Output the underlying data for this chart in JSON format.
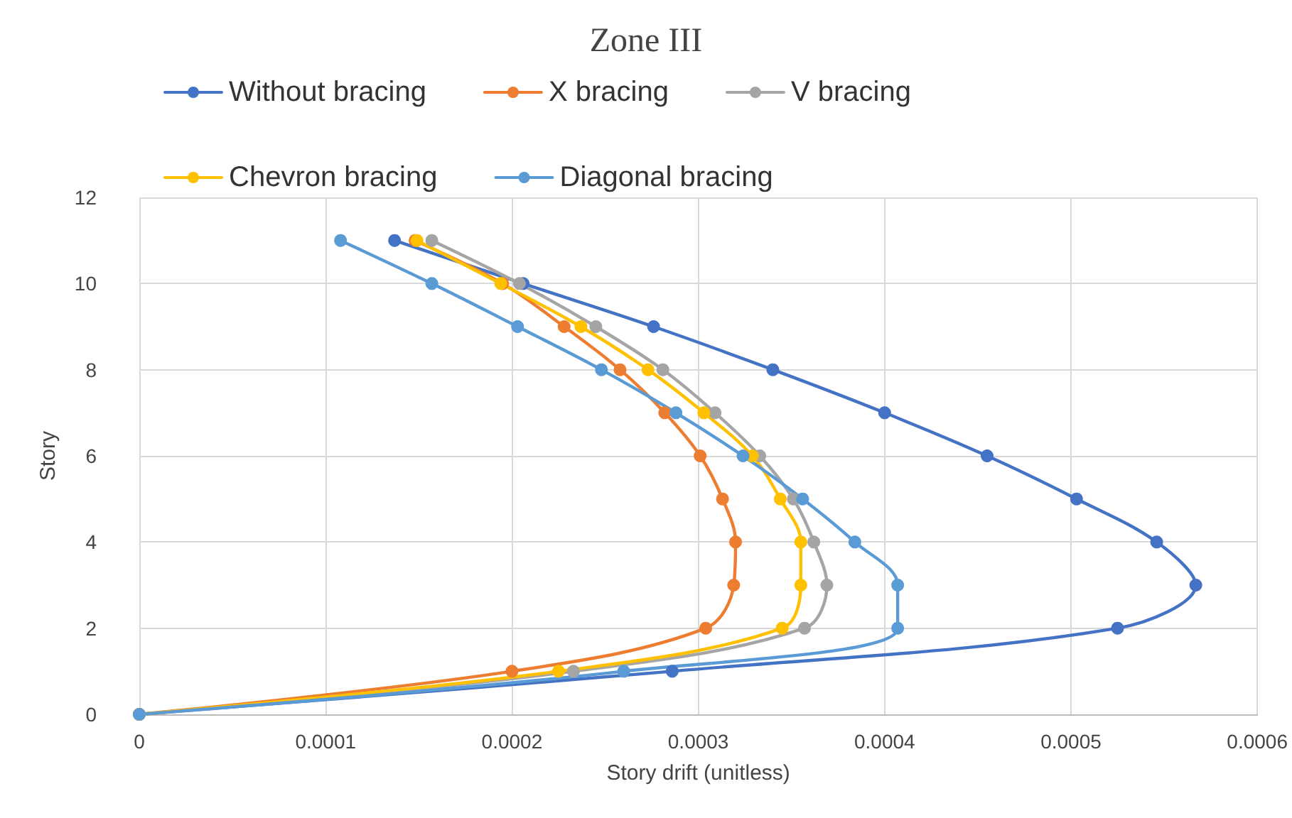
{
  "chart_data": {
    "type": "line",
    "title": "Zone III",
    "xlabel": "Story drift (unitless)",
    "ylabel": "Story",
    "xlim": [
      0,
      0.0006
    ],
    "xticks": [
      0,
      0.0001,
      0.0002,
      0.0003,
      0.0004,
      0.0005,
      0.0006
    ],
    "ylim": [
      0,
      12
    ],
    "yticks": [
      0,
      2,
      4,
      6,
      8,
      10,
      12
    ],
    "grid": true,
    "legend": "top",
    "marker": "circle",
    "line_style": "solid",
    "series": [
      {
        "name": "Without bracing",
        "color": "#4472c4",
        "x": [
          0,
          0.000286,
          0.000525,
          0.000567,
          0.000546,
          0.000503,
          0.000455,
          0.0004,
          0.00034,
          0.000276,
          0.000206,
          0.000137
        ],
        "values": [
          0,
          1,
          2,
          3,
          4,
          5,
          6,
          7,
          8,
          9,
          10,
          11
        ]
      },
      {
        "name": "X bracing",
        "color": "#ed7d31",
        "x": [
          0,
          0.0002,
          0.000304,
          0.000319,
          0.00032,
          0.000313,
          0.000301,
          0.000282,
          0.000258,
          0.000228,
          0.000195,
          0.000148
        ],
        "values": [
          0,
          1,
          2,
          3,
          4,
          5,
          6,
          7,
          8,
          9,
          10,
          11
        ]
      },
      {
        "name": "V bracing",
        "color": "#a5a5a5",
        "x": [
          0,
          0.000233,
          0.000357,
          0.000369,
          0.000362,
          0.000351,
          0.000333,
          0.000309,
          0.000281,
          0.000245,
          0.000204,
          0.000157
        ],
        "values": [
          0,
          1,
          2,
          3,
          4,
          5,
          6,
          7,
          8,
          9,
          10,
          11
        ]
      },
      {
        "name": "Chevron bracing",
        "color": "#ffc000",
        "x": [
          0,
          0.000225,
          0.000345,
          0.000355,
          0.000355,
          0.000344,
          0.000329,
          0.000303,
          0.000273,
          0.000237,
          0.000194,
          0.000149
        ],
        "values": [
          0,
          1,
          2,
          3,
          4,
          5,
          6,
          7,
          8,
          9,
          10,
          11
        ]
      },
      {
        "name": "Diagonal bracing",
        "color": "#5b9bd5",
        "x": [
          0,
          0.00026,
          0.000407,
          0.000407,
          0.000384,
          0.000356,
          0.000324,
          0.000288,
          0.000248,
          0.000203,
          0.000157,
          0.000108
        ],
        "values": [
          0,
          1,
          2,
          3,
          4,
          5,
          6,
          7,
          8,
          9,
          10,
          11
        ]
      }
    ]
  }
}
